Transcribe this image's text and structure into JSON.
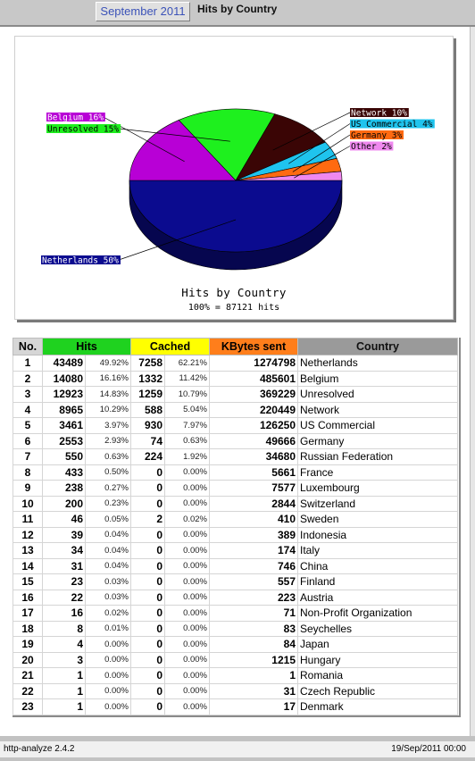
{
  "header": {
    "month_tab": "September 2011",
    "title": "Hits by Country"
  },
  "colors": {
    "hits_header": "#1fd21f",
    "cached_header": "#ffff00",
    "kbytes_header": "#ff7e1b",
    "country_header": "#9a9a9a"
  },
  "chart_data": {
    "type": "pie",
    "title": "Hits by Country",
    "subtitle": "100% = 87121 hits",
    "slices": [
      {
        "label": "Netherlands 50%",
        "value": 50,
        "color": "#0b0b8f"
      },
      {
        "label": "Belgium 16%",
        "value": 16,
        "color": "#b800d6"
      },
      {
        "label": "Unresolved 15%",
        "value": 15,
        "color": "#1ef01e"
      },
      {
        "label": "Network 10%",
        "value": 10,
        "color": "#3a0505"
      },
      {
        "label": "US Commercial 4%",
        "value": 4,
        "color": "#1fc4ee"
      },
      {
        "label": "Germany 3%",
        "value": 3,
        "color": "#ff6a10"
      },
      {
        "label": "Other 2%",
        "value": 2,
        "color": "#ef88ef"
      }
    ]
  },
  "table": {
    "headers": {
      "no": "No.",
      "hits": "Hits",
      "cached": "Cached",
      "kbytes": "KBytes sent",
      "country": "Country"
    },
    "rows": [
      [
        "1",
        "43489",
        "49.92%",
        "7258",
        "62.21%",
        "1274798",
        "Netherlands"
      ],
      [
        "2",
        "14080",
        "16.16%",
        "1332",
        "11.42%",
        "485601",
        "Belgium"
      ],
      [
        "3",
        "12923",
        "14.83%",
        "1259",
        "10.79%",
        "369229",
        "Unresolved"
      ],
      [
        "4",
        "8965",
        "10.29%",
        "588",
        "5.04%",
        "220449",
        "Network"
      ],
      [
        "5",
        "3461",
        "3.97%",
        "930",
        "7.97%",
        "126250",
        "US Commercial"
      ],
      [
        "6",
        "2553",
        "2.93%",
        "74",
        "0.63%",
        "49666",
        "Germany"
      ],
      [
        "7",
        "550",
        "0.63%",
        "224",
        "1.92%",
        "34680",
        "Russian Federation"
      ],
      [
        "8",
        "433",
        "0.50%",
        "0",
        "0.00%",
        "5661",
        "France"
      ],
      [
        "9",
        "238",
        "0.27%",
        "0",
        "0.00%",
        "7577",
        "Luxembourg"
      ],
      [
        "10",
        "200",
        "0.23%",
        "0",
        "0.00%",
        "2844",
        "Switzerland"
      ],
      [
        "11",
        "46",
        "0.05%",
        "2",
        "0.02%",
        "410",
        "Sweden"
      ],
      [
        "12",
        "39",
        "0.04%",
        "0",
        "0.00%",
        "389",
        "Indonesia"
      ],
      [
        "13",
        "34",
        "0.04%",
        "0",
        "0.00%",
        "174",
        "Italy"
      ],
      [
        "14",
        "31",
        "0.04%",
        "0",
        "0.00%",
        "746",
        "China"
      ],
      [
        "15",
        "23",
        "0.03%",
        "0",
        "0.00%",
        "557",
        "Finland"
      ],
      [
        "16",
        "22",
        "0.03%",
        "0",
        "0.00%",
        "223",
        "Austria"
      ],
      [
        "17",
        "16",
        "0.02%",
        "0",
        "0.00%",
        "71",
        "Non-Profit Organization"
      ],
      [
        "18",
        "8",
        "0.01%",
        "0",
        "0.00%",
        "83",
        "Seychelles"
      ],
      [
        "19",
        "4",
        "0.00%",
        "0",
        "0.00%",
        "84",
        "Japan"
      ],
      [
        "20",
        "3",
        "0.00%",
        "0",
        "0.00%",
        "1215",
        "Hungary"
      ],
      [
        "21",
        "1",
        "0.00%",
        "0",
        "0.00%",
        "1",
        "Romania"
      ],
      [
        "22",
        "1",
        "0.00%",
        "0",
        "0.00%",
        "31",
        "Czech Republic"
      ],
      [
        "23",
        "1",
        "0.00%",
        "0",
        "0.00%",
        "17",
        "Denmark"
      ]
    ]
  },
  "footer": {
    "app": "http-analyze 2.4.2",
    "date": "19/Sep/2011 00:00"
  }
}
